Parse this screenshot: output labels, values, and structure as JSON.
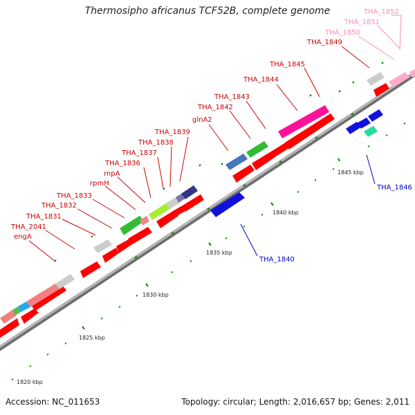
{
  "title": "Thermosipho africanus TCF52B, complete genome",
  "footer": {
    "accession": "Accession: NC_011653",
    "summary": "Topology: circular; Length: 2,016,657 bp; Genes: 2,011"
  },
  "scale_labels": [
    "1820 kbp",
    "1825 kbp",
    "1830 kbp",
    "1835 kbp",
    "1840 kbp",
    "1845 kbp"
  ],
  "gene_labels_forward": [
    "engA",
    "THA_2041",
    "THA_1831",
    "THA_1832",
    "THA_1833",
    "rpmH",
    "rnpA",
    "THA_1836",
    "THA_1837",
    "THA_1838",
    "THA_1839",
    "glnA2",
    "THA_1842",
    "THA_1843",
    "THA_1844",
    "THA_1845",
    "THA_1849",
    "THA_1850",
    "THA_1851",
    "THA_1852"
  ],
  "gene_labels_reverse": [
    "THA_1840",
    "THA_1846"
  ],
  "colors": {
    "cds": "#ff0000",
    "label_forward": "#cc0000",
    "label_reverse": "#0000cc",
    "label_pink": "#ff88bb",
    "backbone": "#9a9a9a",
    "tick": "#008800"
  }
}
